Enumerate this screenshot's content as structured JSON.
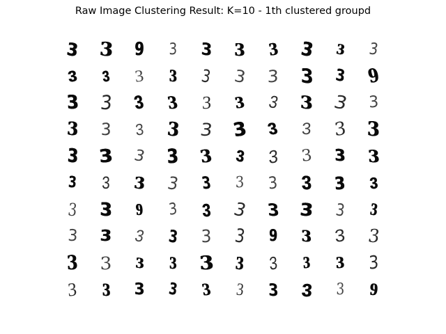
{
  "figure": {
    "title": "Raw Image Clustering Result: K=10 - 1th clustered groupd"
  },
  "grid": {
    "rows": 10,
    "cols": 10,
    "cells": [
      [
        "3",
        "3",
        "9",
        "3",
        "3",
        "3",
        "3",
        "3",
        "3",
        "3"
      ],
      [
        "3",
        "3",
        "3",
        "3",
        "3",
        "3",
        "3",
        "3",
        "3",
        "9"
      ],
      [
        "3",
        "3",
        "3",
        "3",
        "3",
        "3",
        "3",
        "3",
        "3",
        "3"
      ],
      [
        "3",
        "3",
        "3",
        "3",
        "3",
        "3",
        "3",
        "3",
        "3",
        "3"
      ],
      [
        "3",
        "3",
        "3",
        "3",
        "3",
        "3",
        "3",
        "3",
        "3",
        "3"
      ],
      [
        "3",
        "3",
        "3",
        "3",
        "3",
        "3",
        "3",
        "3",
        "3",
        "3"
      ],
      [
        "3",
        "3",
        "9",
        "3",
        "3",
        "3",
        "3",
        "3",
        "3",
        "3"
      ],
      [
        "3",
        "3",
        "3",
        "3",
        "3",
        "3",
        "9",
        "3",
        "3",
        "3"
      ],
      [
        "3",
        "3",
        "3",
        "3",
        "3",
        "3",
        "3",
        "3",
        "3",
        "3"
      ],
      [
        "3",
        "3",
        "3",
        "3",
        "3",
        "3",
        "3",
        "3",
        "3",
        "9"
      ]
    ]
  }
}
